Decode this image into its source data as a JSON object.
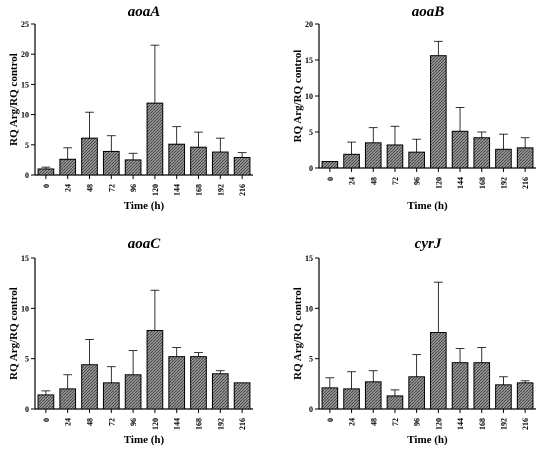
{
  "pattern_colors": {
    "bar_fill": "#8a8a8a",
    "bar_dark": "#3a3a3a",
    "axis": "#000000"
  },
  "chart_data": [
    {
      "type": "bar",
      "title": "aoaA",
      "xlabel": "Time (h)",
      "ylabel": "RQ Arg/RQ control",
      "categories": [
        "0",
        "24",
        "48",
        "72",
        "96",
        "120",
        "144",
        "168",
        "192",
        "216"
      ],
      "values": [
        1.0,
        2.6,
        6.1,
        3.9,
        2.5,
        11.9,
        5.1,
        4.6,
        3.8,
        2.9
      ],
      "error_upper": [
        1.3,
        4.5,
        10.4,
        6.5,
        3.6,
        21.5,
        8.0,
        7.1,
        6.1,
        3.7
      ],
      "ylim": [
        0,
        25
      ],
      "yticks": [
        "0",
        "5",
        "10",
        "15",
        "20",
        "25"
      ]
    },
    {
      "type": "bar",
      "title": "aoaB",
      "xlabel": "Time (h)",
      "ylabel": "RQ Arg/RQ control",
      "categories": [
        "0",
        "24",
        "48",
        "72",
        "96",
        "120",
        "144",
        "168",
        "192",
        "216"
      ],
      "values": [
        0.9,
        1.9,
        3.5,
        3.2,
        2.2,
        15.6,
        5.1,
        4.2,
        2.6,
        2.8
      ],
      "error_upper": [
        0.9,
        3.6,
        5.6,
        5.8,
        4.0,
        17.6,
        8.4,
        5.0,
        4.7,
        4.2
      ],
      "ylim": [
        0,
        20
      ],
      "yticks": [
        "0",
        "5",
        "10",
        "15",
        "20"
      ]
    },
    {
      "type": "bar",
      "title": "aoaC",
      "xlabel": "Time (h)",
      "ylabel": "RQ Arg/RQ control",
      "categories": [
        "0",
        "24",
        "48",
        "72",
        "96",
        "120",
        "144",
        "168",
        "192",
        "216"
      ],
      "values": [
        1.4,
        2.0,
        4.4,
        2.6,
        3.4,
        7.8,
        5.2,
        5.2,
        3.5,
        2.6
      ],
      "error_upper": [
        1.8,
        3.4,
        6.9,
        4.2,
        5.8,
        11.8,
        6.1,
        5.6,
        3.8,
        2.6
      ],
      "ylim": [
        0,
        15
      ],
      "yticks": [
        "0",
        "5",
        "10",
        "15"
      ]
    },
    {
      "type": "bar",
      "title": "cyrJ",
      "xlabel": "Time (h)",
      "ylabel": "RQ Arg/RQ control",
      "categories": [
        "0",
        "24",
        "48",
        "72",
        "96",
        "120",
        "144",
        "168",
        "192",
        "216"
      ],
      "values": [
        2.1,
        2.0,
        2.7,
        1.3,
        3.2,
        7.6,
        4.6,
        4.6,
        2.4,
        2.6
      ],
      "error_upper": [
        3.1,
        3.7,
        3.8,
        1.9,
        5.4,
        12.6,
        6.0,
        6.1,
        3.2,
        2.8
      ],
      "ylim": [
        0,
        15
      ],
      "yticks": [
        "0",
        "5",
        "10",
        "15"
      ]
    }
  ]
}
